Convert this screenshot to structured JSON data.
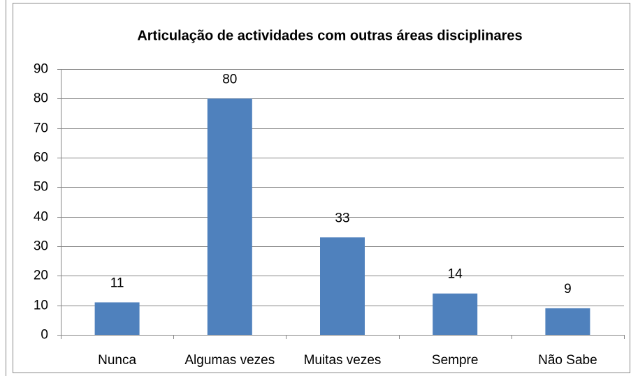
{
  "chart_data": {
    "type": "bar",
    "title": "Articulação de actividades com outras áreas disciplinares",
    "categories": [
      "Nunca",
      "Algumas vezes",
      "Muitas vezes",
      "Sempre",
      "Não Sabe"
    ],
    "values": [
      11,
      80,
      33,
      14,
      9
    ],
    "color": "#4f81bd",
    "ylim": [
      0,
      90
    ],
    "yticks": [
      0,
      10,
      20,
      30,
      40,
      50,
      60,
      70,
      80,
      90
    ],
    "grid": true
  }
}
